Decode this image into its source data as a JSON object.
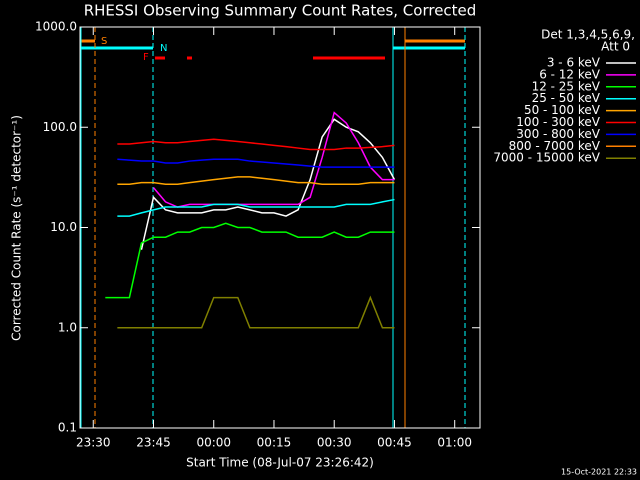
{
  "chart_data": {
    "type": "line",
    "title": "RHESSI Observing Summary Count Rates, Corrected",
    "x_label": "Start Time (08-Jul-07 23:26:42)",
    "y_label": "Corrected Count Rate (s⁻¹ detector⁻¹)",
    "legend_title": [
      "Det 1,3,4,5,6,9,",
      "Att 0"
    ],
    "flags": [
      "S",
      "N",
      "F"
    ],
    "footer": "15-Oct-2021 22:33",
    "log_y": true,
    "xlim": [
      1406.7,
      1506.3
    ],
    "xticks": [
      {
        "value": 1410,
        "label": "23:30"
      },
      {
        "value": 1425,
        "label": "23:45"
      },
      {
        "value": 1440,
        "label": "00:00"
      },
      {
        "value": 1455,
        "label": "00:15"
      },
      {
        "value": 1470,
        "label": "00:30"
      },
      {
        "value": 1485,
        "label": "00:45"
      },
      {
        "value": 1500,
        "label": "01:00"
      }
    ],
    "ylim": [
      0.1,
      1000
    ],
    "yticks": [
      {
        "value": 1000,
        "label": "1000.0"
      },
      {
        "value": 100,
        "label": "100.0"
      },
      {
        "value": 10,
        "label": "10.0"
      },
      {
        "value": 1,
        "label": "1.0"
      },
      0.1
    ],
    "x": [
      1413,
      1416,
      1419,
      1422,
      1425,
      1428,
      1431,
      1434,
      1437,
      1440,
      1443,
      1446,
      1449,
      1452,
      1455,
      1458,
      1461,
      1464,
      1467,
      1470,
      1473,
      1476,
      1479,
      1482,
      1485
    ],
    "series": [
      {
        "name": "3 - 6 keV",
        "color": "#ffffff",
        "values": [
          null,
          null,
          null,
          6,
          20,
          15,
          14,
          14,
          14,
          15,
          15,
          16,
          15,
          14,
          14,
          13,
          15,
          30,
          80,
          120,
          100,
          90,
          70,
          50,
          30
        ]
      },
      {
        "name": "6 - 12 keV",
        "color": "#ff00ff",
        "values": [
          null,
          null,
          null,
          null,
          25,
          18,
          16,
          17,
          17,
          17,
          17,
          17,
          17,
          17,
          17,
          17,
          17,
          20,
          50,
          140,
          110,
          70,
          40,
          30,
          30
        ]
      },
      {
        "name": "12 - 25 keV",
        "color": "#00ff00",
        "values": [
          2,
          2,
          2,
          7,
          8,
          8,
          9,
          9,
          10,
          10,
          11,
          10,
          10,
          9,
          9,
          9,
          8,
          8,
          8,
          9,
          8,
          8,
          9,
          9,
          9
        ]
      },
      {
        "name": "25 - 50 keV",
        "color": "#00ffff",
        "values": [
          null,
          13,
          13,
          14,
          15,
          16,
          16,
          16,
          16,
          17,
          17,
          17,
          16,
          16,
          16,
          16,
          16,
          16,
          16,
          16,
          17,
          17,
          17,
          18,
          19
        ]
      },
      {
        "name": "50 - 100 keV",
        "color": "#ffa500",
        "values": [
          null,
          27,
          27,
          28,
          28,
          27,
          27,
          28,
          29,
          30,
          31,
          32,
          32,
          31,
          30,
          29,
          28,
          28,
          27,
          27,
          27,
          27,
          28,
          28,
          28
        ]
      },
      {
        "name": "100 - 300 keV",
        "color": "#ff0000",
        "values": [
          null,
          68,
          68,
          70,
          72,
          70,
          70,
          72,
          74,
          76,
          74,
          72,
          70,
          68,
          66,
          64,
          62,
          60,
          60,
          60,
          62,
          62,
          63,
          64,
          66
        ]
      },
      {
        "name": "300 - 800 keV",
        "color": "#0000ff",
        "values": [
          null,
          48,
          47,
          46,
          46,
          44,
          44,
          46,
          47,
          48,
          48,
          48,
          46,
          45,
          44,
          43,
          42,
          41,
          40,
          40,
          40,
          40,
          40,
          40,
          40
        ]
      },
      {
        "name": "800 - 7000 keV",
        "color": "#ff8000",
        "values": [
          null,
          null,
          null,
          null,
          null,
          null,
          null,
          null,
          null,
          null,
          null,
          null,
          null,
          null,
          null,
          null,
          null,
          null,
          null,
          null,
          null,
          null,
          null,
          null,
          null
        ]
      },
      {
        "name": "7000 - 15000 keV",
        "color": "#808000",
        "values": [
          null,
          1,
          1,
          1,
          1,
          1,
          1,
          1,
          1,
          2,
          2,
          2,
          1,
          1,
          1,
          1,
          1,
          1,
          1,
          1,
          1,
          1,
          2,
          1,
          1
        ]
      }
    ]
  }
}
